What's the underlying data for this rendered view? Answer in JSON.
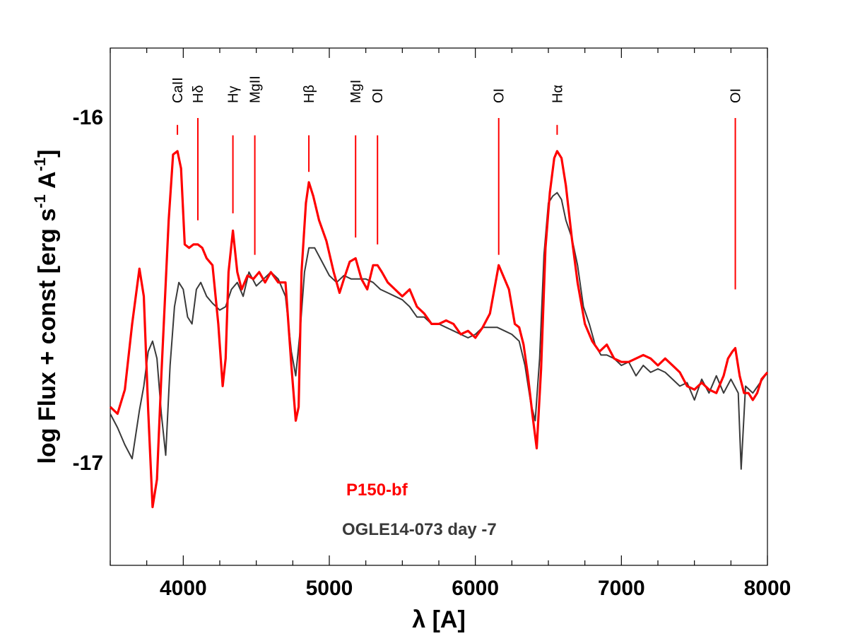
{
  "chart_data": {
    "type": "line",
    "xlabel": "λ [A]",
    "ylabel": "log Flux + const [erg s-1 A-1]",
    "ylabel_parts": {
      "main": "log Flux + const [erg s",
      "exp1": "-1",
      "mid": " A",
      "exp2": "-1",
      "end": "]"
    },
    "xlim": [
      3500,
      8000
    ],
    "ylim": [
      -17.3,
      -15.8
    ],
    "xticks": [
      4000,
      5000,
      6000,
      7000,
      8000
    ],
    "xtick_labels": [
      "4000",
      "5000",
      "6000",
      "7000",
      "8000"
    ],
    "yticks": [
      -16,
      -17
    ],
    "ytick_labels": [
      "-16",
      "-17"
    ],
    "colors": {
      "model": "#ff0000",
      "observed": "#3a3a3a",
      "lines": "#ff0000"
    },
    "line_ids": [
      {
        "label": "CaII",
        "x": 3960,
        "y_top": -16.02,
        "y_bottom": -16.02
      },
      {
        "label": "Hδ",
        "x": 4100,
        "y_top": -16.0,
        "y_bottom": -16.3
      },
      {
        "label": "Hγ",
        "x": 4340,
        "y_top": -16.05,
        "y_bottom": -16.28
      },
      {
        "label": "MgII",
        "x": 4490,
        "y_top": -16.05,
        "y_bottom": -16.4
      },
      {
        "label": "Hβ",
        "x": 4860,
        "y_top": -16.05,
        "y_bottom": -16.16
      },
      {
        "label": "MgI",
        "x": 5180,
        "y_top": -16.05,
        "y_bottom": -16.35
      },
      {
        "label": "OI",
        "x": 5330,
        "y_top": -16.05,
        "y_bottom": -16.37
      },
      {
        "label": "OI",
        "x": 6160,
        "y_top": -16.0,
        "y_bottom": -16.4
      },
      {
        "label": "Hα",
        "x": 6560,
        "y_top": -16.02,
        "y_bottom": -16.05
      },
      {
        "label": "OI",
        "x": 7780,
        "y_top": -16.0,
        "y_bottom": -16.5
      }
    ],
    "series": [
      {
        "name": "P150-bf",
        "color": "#ff0000",
        "x": [
          3500,
          3550,
          3600,
          3650,
          3700,
          3730,
          3760,
          3790,
          3820,
          3850,
          3900,
          3930,
          3960,
          3985,
          4010,
          4040,
          4070,
          4100,
          4130,
          4160,
          4200,
          4240,
          4270,
          4290,
          4310,
          4340,
          4370,
          4400,
          4440,
          4480,
          4520,
          4560,
          4600,
          4650,
          4700,
          4740,
          4770,
          4790,
          4810,
          4840,
          4860,
          4890,
          4930,
          4980,
          5030,
          5070,
          5100,
          5140,
          5180,
          5220,
          5260,
          5300,
          5330,
          5360,
          5400,
          5450,
          5500,
          5550,
          5600,
          5650,
          5700,
          5750,
          5800,
          5850,
          5900,
          5950,
          6000,
          6050,
          6100,
          6130,
          6160,
          6190,
          6230,
          6270,
          6300,
          6330,
          6360,
          6390,
          6420,
          6450,
          6480,
          6510,
          6540,
          6560,
          6590,
          6620,
          6660,
          6700,
          6750,
          6800,
          6850,
          6900,
          6950,
          7000,
          7050,
          7100,
          7150,
          7200,
          7250,
          7300,
          7350,
          7400,
          7450,
          7500,
          7550,
          7600,
          7650,
          7700,
          7730,
          7760,
          7780,
          7810,
          7840,
          7870,
          7900,
          7930,
          7960,
          8000
        ],
        "values": [
          -16.84,
          -16.86,
          -16.79,
          -16.6,
          -16.44,
          -16.52,
          -16.85,
          -17.13,
          -17.05,
          -16.75,
          -16.3,
          -16.11,
          -16.1,
          -16.15,
          -16.37,
          -16.38,
          -16.37,
          -16.37,
          -16.38,
          -16.41,
          -16.43,
          -16.6,
          -16.78,
          -16.7,
          -16.45,
          -16.33,
          -16.45,
          -16.5,
          -16.46,
          -16.47,
          -16.45,
          -16.48,
          -16.45,
          -16.48,
          -16.48,
          -16.72,
          -16.88,
          -16.84,
          -16.45,
          -16.25,
          -16.19,
          -16.23,
          -16.3,
          -16.36,
          -16.45,
          -16.51,
          -16.47,
          -16.42,
          -16.41,
          -16.47,
          -16.5,
          -16.43,
          -16.43,
          -16.45,
          -16.48,
          -16.5,
          -16.52,
          -16.5,
          -16.55,
          -16.57,
          -16.6,
          -16.6,
          -16.59,
          -16.6,
          -16.63,
          -16.62,
          -16.64,
          -16.61,
          -16.57,
          -16.5,
          -16.43,
          -16.46,
          -16.5,
          -16.6,
          -16.61,
          -16.66,
          -16.75,
          -16.86,
          -16.96,
          -16.73,
          -16.38,
          -16.22,
          -16.12,
          -16.1,
          -16.12,
          -16.2,
          -16.35,
          -16.48,
          -16.6,
          -16.65,
          -16.68,
          -16.66,
          -16.7,
          -16.71,
          -16.71,
          -16.7,
          -16.69,
          -16.7,
          -16.72,
          -16.7,
          -16.72,
          -16.74,
          -16.78,
          -16.79,
          -16.77,
          -16.79,
          -16.8,
          -16.75,
          -16.7,
          -16.68,
          -16.67,
          -16.75,
          -16.8,
          -16.8,
          -16.82,
          -16.8,
          -16.76,
          -16.74
        ]
      },
      {
        "name": "OGLE14-073 day -7",
        "color": "#3a3a3a",
        "x": [
          3500,
          3550,
          3600,
          3650,
          3700,
          3730,
          3760,
          3790,
          3820,
          3850,
          3880,
          3910,
          3940,
          3970,
          4000,
          4030,
          4060,
          4090,
          4120,
          4160,
          4200,
          4250,
          4290,
          4330,
          4370,
          4410,
          4450,
          4500,
          4550,
          4600,
          4650,
          4700,
          4740,
          4770,
          4800,
          4830,
          4860,
          4900,
          4950,
          5000,
          5050,
          5100,
          5150,
          5200,
          5250,
          5300,
          5350,
          5400,
          5450,
          5500,
          5550,
          5600,
          5650,
          5700,
          5750,
          5800,
          5850,
          5900,
          5950,
          6000,
          6050,
          6100,
          6150,
          6200,
          6250,
          6300,
          6340,
          6380,
          6410,
          6440,
          6470,
          6500,
          6530,
          6560,
          6590,
          6620,
          6660,
          6700,
          6740,
          6780,
          6820,
          6860,
          6900,
          6950,
          7000,
          7050,
          7100,
          7150,
          7200,
          7250,
          7300,
          7350,
          7400,
          7450,
          7500,
          7550,
          7600,
          7650,
          7700,
          7750,
          7800,
          7820,
          7850,
          7900,
          7950,
          8000
        ],
        "values": [
          -16.86,
          -16.9,
          -16.95,
          -16.99,
          -16.85,
          -16.78,
          -16.68,
          -16.65,
          -16.7,
          -16.86,
          -16.98,
          -16.72,
          -16.55,
          -16.48,
          -16.5,
          -16.58,
          -16.6,
          -16.5,
          -16.48,
          -16.52,
          -16.54,
          -16.56,
          -16.55,
          -16.5,
          -16.48,
          -16.52,
          -16.45,
          -16.49,
          -16.47,
          -16.45,
          -16.47,
          -16.52,
          -16.68,
          -16.75,
          -16.62,
          -16.45,
          -16.38,
          -16.38,
          -16.42,
          -16.46,
          -16.48,
          -16.46,
          -16.47,
          -16.47,
          -16.47,
          -16.48,
          -16.5,
          -16.51,
          -16.52,
          -16.53,
          -16.55,
          -16.58,
          -16.58,
          -16.6,
          -16.6,
          -16.61,
          -16.62,
          -16.63,
          -16.64,
          -16.63,
          -16.61,
          -16.61,
          -16.61,
          -16.62,
          -16.63,
          -16.65,
          -16.72,
          -16.83,
          -16.88,
          -16.7,
          -16.4,
          -16.25,
          -16.23,
          -16.22,
          -16.24,
          -16.3,
          -16.35,
          -16.43,
          -16.55,
          -16.6,
          -16.66,
          -16.69,
          -16.69,
          -16.7,
          -16.72,
          -16.71,
          -16.75,
          -16.72,
          -16.74,
          -16.73,
          -16.74,
          -16.76,
          -16.78,
          -16.77,
          -16.82,
          -16.76,
          -16.8,
          -16.75,
          -16.8,
          -16.76,
          -16.8,
          -17.02,
          -16.78,
          -16.8,
          -16.77,
          -16.74
        ]
      }
    ],
    "legend": [
      {
        "label": "P150-bf",
        "color": "#ff0000"
      },
      {
        "label": "OGLE14-073 day -7",
        "color": "#3a3a3a"
      }
    ]
  }
}
